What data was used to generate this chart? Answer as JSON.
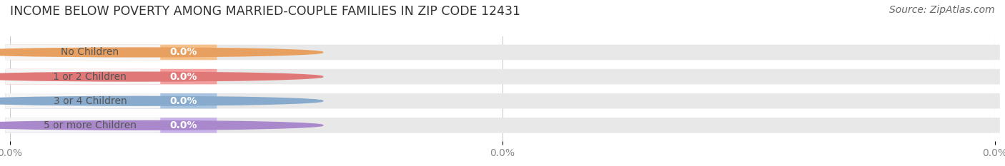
{
  "title": "INCOME BELOW POVERTY AMONG MARRIED-COUPLE FAMILIES IN ZIP CODE 12431",
  "source": "Source: ZipAtlas.com",
  "categories": [
    "No Children",
    "1 or 2 Children",
    "3 or 4 Children",
    "5 or more Children"
  ],
  "values": [
    0.0,
    0.0,
    0.0,
    0.0
  ],
  "bar_colors": [
    "#f5c08a",
    "#f5a0a0",
    "#a8c4e0",
    "#c8b4e8"
  ],
  "circle_colors": [
    "#e8a060",
    "#e07878",
    "#88aacc",
    "#aa88cc"
  ],
  "background_color": "#ffffff",
  "bar_bg_color": "#e8e8e8",
  "label_bg_color": "#f8f8f8",
  "title_fontsize": 12.5,
  "source_fontsize": 10,
  "label_fontsize": 10,
  "tick_fontsize": 10,
  "value_label_color": "#ffffff",
  "category_text_color": "#555555",
  "grid_color": "#cccccc"
}
